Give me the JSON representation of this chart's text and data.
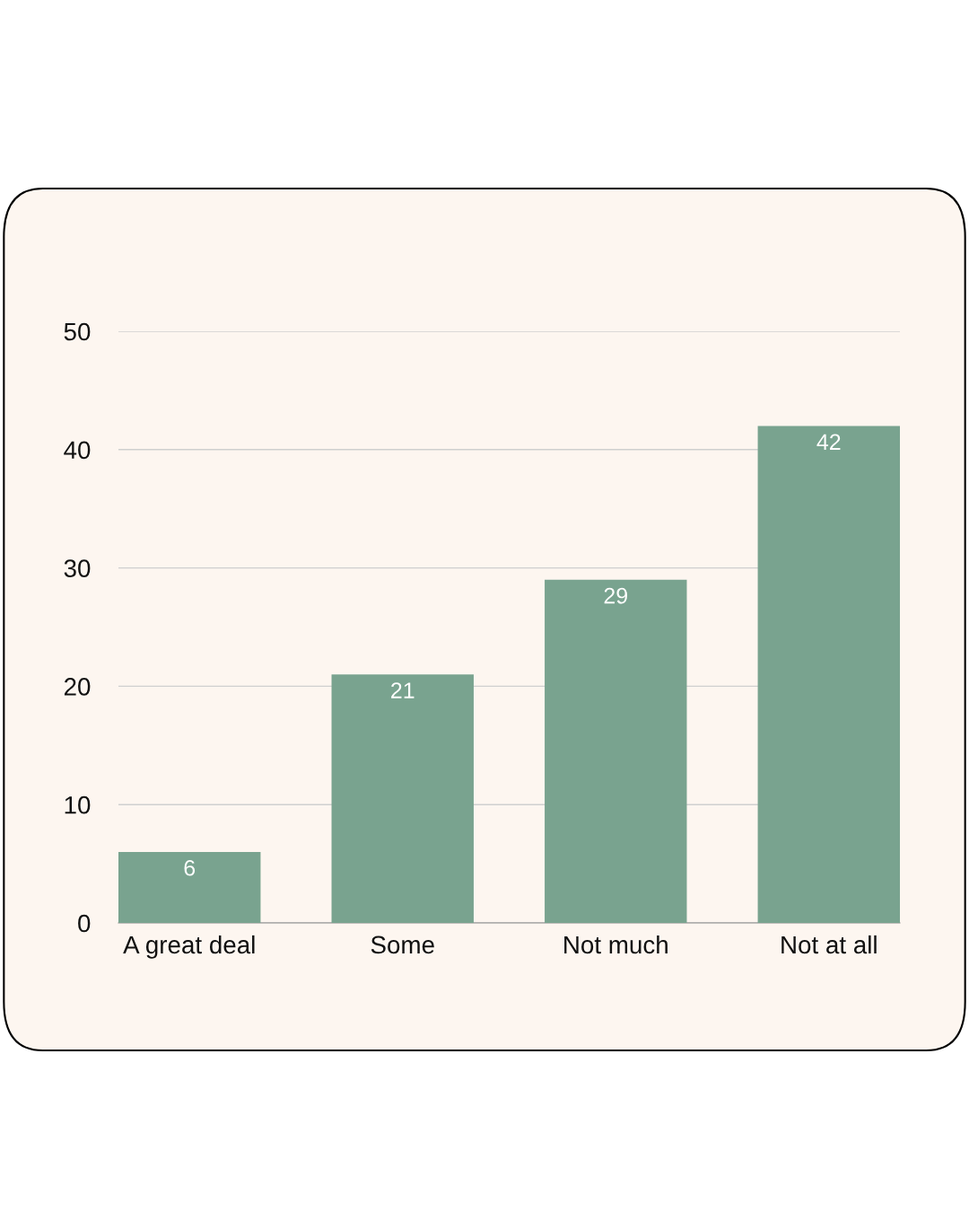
{
  "chart_data": {
    "type": "bar",
    "categories": [
      "A great deal",
      "Some",
      "Not much",
      "Not at all"
    ],
    "values": [
      6,
      21,
      29,
      42
    ],
    "color": "#79a38f",
    "ylim": [
      0,
      50
    ],
    "yticks": [
      0,
      10,
      20,
      30,
      40,
      50
    ],
    "grid": "y",
    "data_labels": true
  }
}
